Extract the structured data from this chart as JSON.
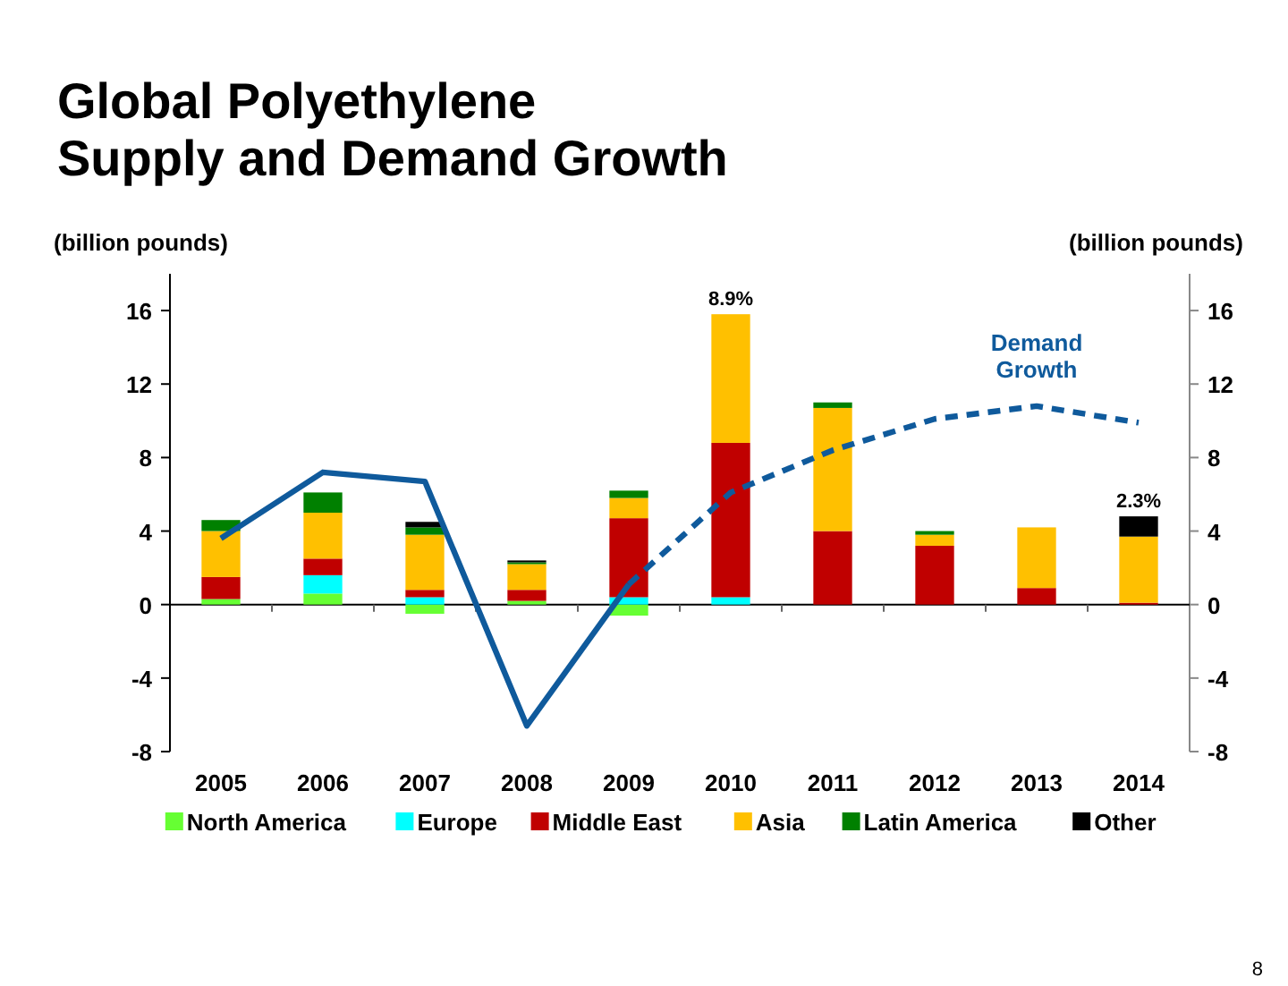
{
  "chart_data": {
    "type": "bar",
    "stacked": true,
    "title": "Global Polyethylene\nSupply and Demand Growth",
    "ylabel": "(billion pounds)",
    "y2label": "(billion pounds)",
    "categories": [
      "2005",
      "2006",
      "2007",
      "2008",
      "2009",
      "2010",
      "2011",
      "2012",
      "2013",
      "2014"
    ],
    "series": [
      {
        "name": "North America",
        "color": "#66ff33",
        "values": [
          0.3,
          0.6,
          -0.5,
          0.2,
          -0.6,
          0,
          0,
          0,
          0,
          0
        ]
      },
      {
        "name": "Europe",
        "color": "#00ffff",
        "values": [
          0,
          1.0,
          0.4,
          0,
          0.4,
          0.4,
          0,
          0,
          0,
          0
        ]
      },
      {
        "name": "Middle East",
        "color": "#c00000",
        "values": [
          1.2,
          0.9,
          0.4,
          0.6,
          4.3,
          8.4,
          4.0,
          3.2,
          0.9,
          0.1
        ]
      },
      {
        "name": "Asia",
        "color": "#ffc000",
        "values": [
          2.5,
          2.5,
          3.0,
          1.4,
          1.1,
          7.0,
          6.7,
          0.6,
          3.3,
          3.6
        ]
      },
      {
        "name": "Latin America",
        "color": "#008000",
        "values": [
          0.6,
          1.1,
          0.4,
          0.1,
          0.4,
          0,
          0.3,
          0.2,
          0,
          0
        ]
      },
      {
        "name": "Other",
        "color": "#000000",
        "values": [
          0,
          0,
          0.3,
          0.1,
          0,
          0,
          0,
          0,
          0,
          1.1
        ]
      },
      {
        "type": "line",
        "color": "#0f5a9c",
        "line_style": "solid",
        "values": [
          3.6,
          7.2,
          6.7,
          -6.6,
          1.1,
          null,
          null,
          null,
          null,
          null
        ]
      },
      {
        "type": "line",
        "name": "Demand Growth",
        "color": "#0f5a9c",
        "line_style": "dashed",
        "values": [
          null,
          null,
          null,
          null,
          1.1,
          6.1,
          8.4,
          10.1,
          10.8,
          9.9
        ]
      }
    ],
    "ylim": [
      -8,
      18
    ],
    "yticks": [
      -8,
      -4,
      0,
      4,
      8,
      12,
      16
    ],
    "y2lim": [
      -8,
      18
    ],
    "y2ticks": [
      -8,
      -4,
      0,
      4,
      8,
      12,
      16
    ],
    "legend": "bottom",
    "annotations": [
      {
        "text": "8.9%",
        "x": "2010",
        "y": 15.8
      },
      {
        "text": "2.3%",
        "x": "2014",
        "y": 4.8
      },
      "8"
    ]
  }
}
